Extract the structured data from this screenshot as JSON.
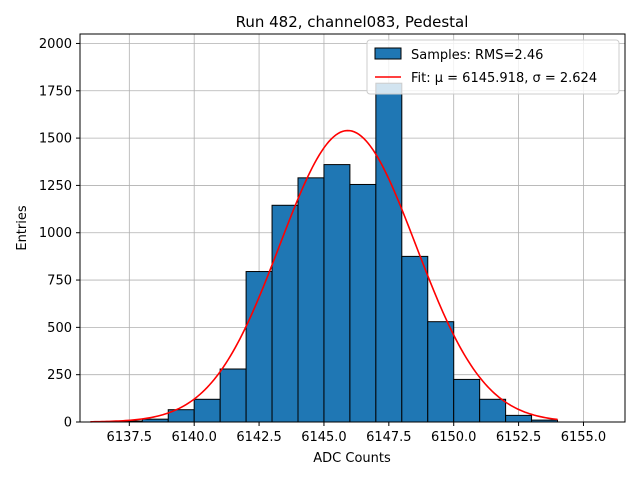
{
  "chart_data": {
    "type": "bar",
    "title": "Run 482, channel083, Pedestal",
    "xlabel": "ADC Counts",
    "ylabel": "Entries",
    "xlim": [
      6135.6,
      6156.6
    ],
    "ylim": [
      0,
      2050
    ],
    "x_ticks": [
      6137.5,
      6140.0,
      6142.5,
      6145.0,
      6147.5,
      6150.0,
      6152.5,
      6155.0
    ],
    "x_tick_labels": [
      "6137.5",
      "6140.0",
      "6142.5",
      "6145.0",
      "6147.5",
      "6150.0",
      "6152.5",
      "6155.0"
    ],
    "y_ticks": [
      0,
      250,
      500,
      750,
      1000,
      1250,
      1500,
      1750,
      2000
    ],
    "y_tick_labels": [
      "0",
      "250",
      "500",
      "750",
      "1000",
      "1250",
      "1500",
      "1750",
      "2000"
    ],
    "grid": true,
    "legend_position": "top-right",
    "bins": {
      "edges": [
        6137,
        6138,
        6139,
        6140,
        6141,
        6142,
        6143,
        6144,
        6145,
        6146,
        6147,
        6148,
        6149,
        6150,
        6151,
        6152,
        6153,
        6154
      ],
      "counts": [
        5,
        15,
        65,
        120,
        280,
        795,
        1145,
        1290,
        1360,
        1255,
        1790,
        875,
        530,
        225,
        120,
        35,
        10
      ],
      "color": "#1f77b4",
      "edge_color": "#000000",
      "label": "Samples: RMS=2.46"
    },
    "fit": {
      "label": "Fit: μ = 6145.918, σ = 2.624",
      "mu": 6145.918,
      "sigma": 2.624,
      "amplitude": 1540,
      "x_range": [
        6136,
        6154
      ],
      "color": "#ff0000"
    }
  }
}
